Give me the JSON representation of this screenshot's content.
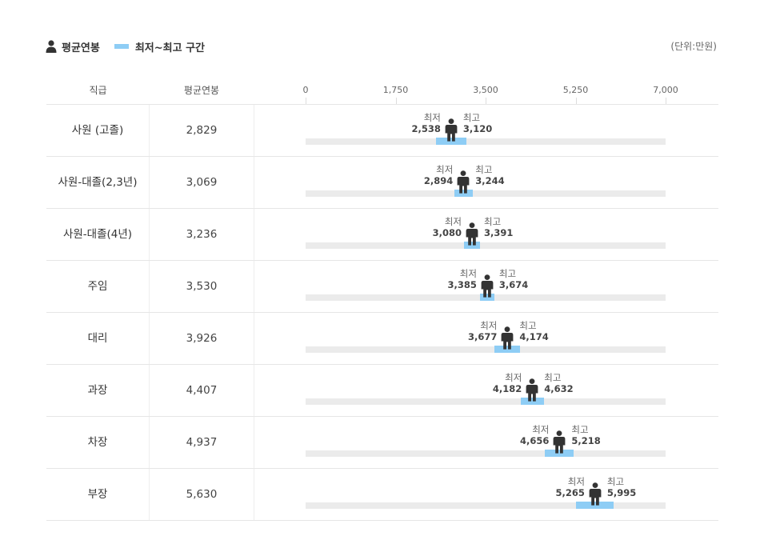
{
  "legend": {
    "avg_label": "평균연봉",
    "range_label": "최저~최고 구간",
    "icon": "person-icon",
    "unit": "(단위:만원)"
  },
  "colors": {
    "range": "#8ecdf5",
    "track": "#ebebeb",
    "person": "#333333"
  },
  "columns": {
    "rank": "직급",
    "avg": "평균연봉"
  },
  "min_caption": "최저",
  "max_caption": "최고",
  "chart_data": {
    "type": "range-dot",
    "x_ticks": [
      "0",
      "1,750",
      "3,500",
      "5,250",
      "7,000"
    ],
    "x_tick_values": [
      0,
      1750,
      3500,
      5250,
      7000
    ],
    "xlim": [
      0,
      7000
    ],
    "unit": "(단위:만원)",
    "rows": [
      {
        "rank": "사원 (고졸)",
        "avg": 2829,
        "avg_text": "2,829",
        "min": 2538,
        "min_text": "2,538",
        "max": 3120,
        "max_text": "3,120"
      },
      {
        "rank": "사원-대졸(2,3년)",
        "avg": 3069,
        "avg_text": "3,069",
        "min": 2894,
        "min_text": "2,894",
        "max": 3244,
        "max_text": "3,244"
      },
      {
        "rank": "사원-대졸(4년)",
        "avg": 3236,
        "avg_text": "3,236",
        "min": 3080,
        "min_text": "3,080",
        "max": 3391,
        "max_text": "3,391"
      },
      {
        "rank": "주임",
        "avg": 3530,
        "avg_text": "3,530",
        "min": 3385,
        "min_text": "3,385",
        "max": 3674,
        "max_text": "3,674"
      },
      {
        "rank": "대리",
        "avg": 3926,
        "avg_text": "3,926",
        "min": 3677,
        "min_text": "3,677",
        "max": 4174,
        "max_text": "4,174"
      },
      {
        "rank": "과장",
        "avg": 4407,
        "avg_text": "4,407",
        "min": 4182,
        "min_text": "4,182",
        "max": 4632,
        "max_text": "4,632"
      },
      {
        "rank": "차장",
        "avg": 4937,
        "avg_text": "4,937",
        "min": 4656,
        "min_text": "4,656",
        "max": 5218,
        "max_text": "5,218"
      },
      {
        "rank": "부장",
        "avg": 5630,
        "avg_text": "5,630",
        "min": 5265,
        "min_text": "5,265",
        "max": 5995,
        "max_text": "5,995"
      }
    ]
  }
}
